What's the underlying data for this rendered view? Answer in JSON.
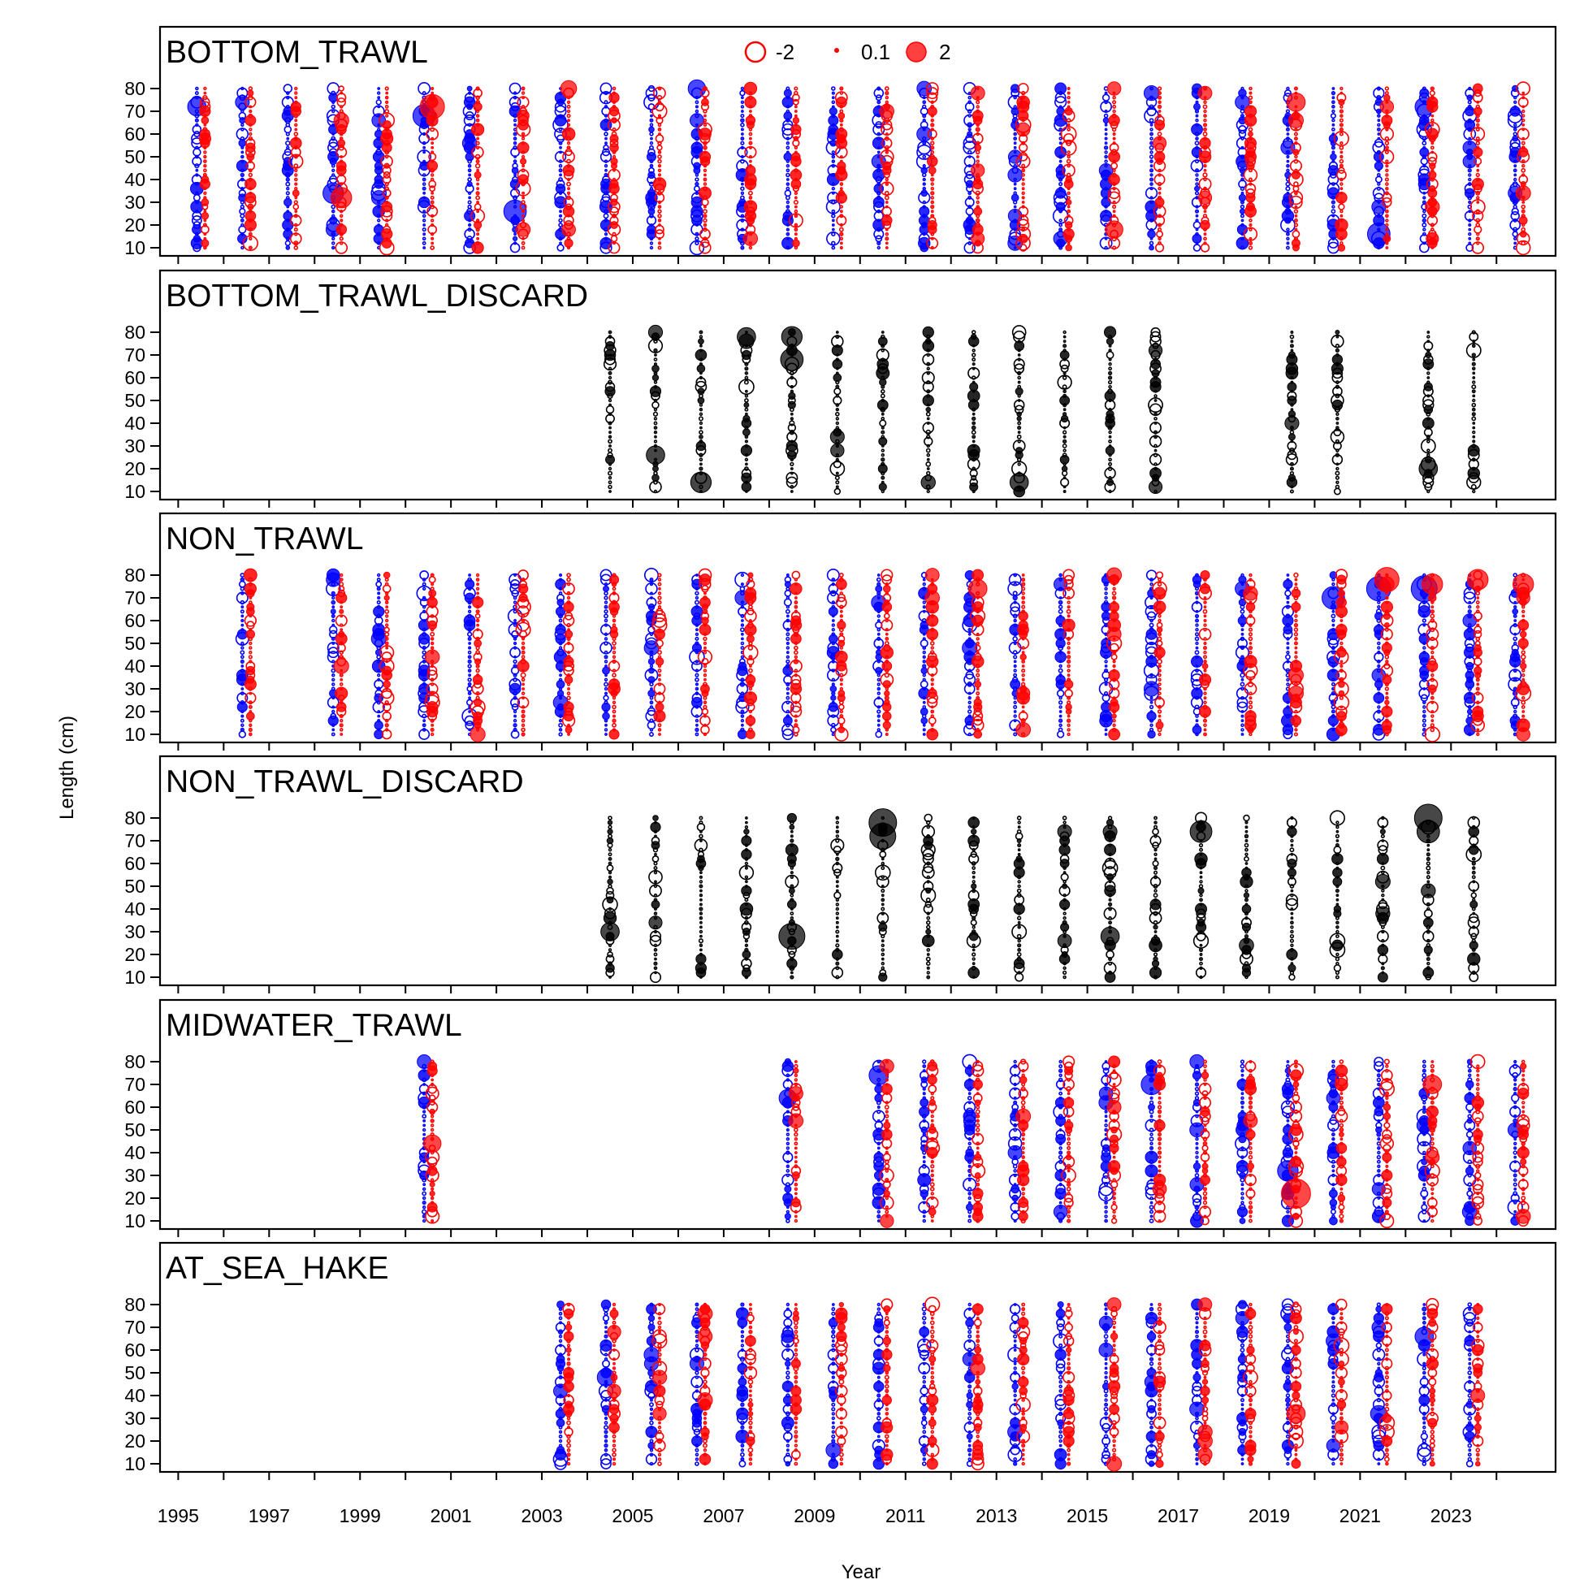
{
  "chart_data": {
    "type": "scatter",
    "subtype": "bubble (Pearson residuals by year and length bin)",
    "xlabel": "Year",
    "ylabel": "Length (cm)",
    "ylim": [
      10,
      80
    ],
    "y_ticks": [
      10,
      20,
      30,
      40,
      50,
      60,
      70,
      80
    ],
    "x_ticks_labeled": [
      "1995",
      "1997",
      "1999",
      "2001",
      "2003",
      "2005",
      "2007",
      "2009",
      "2011",
      "2013",
      "2015",
      "2017",
      "2019",
      "2021",
      "2023"
    ],
    "xlim": [
      1994.6,
      2025.3
    ],
    "colors": {
      "female": "#0000FF",
      "male": "#FF0000",
      "unsexed": "#000000"
    },
    "legend": {
      "position": "top-center",
      "entries": [
        {
          "label": "-2",
          "value": -2,
          "style": "open"
        },
        {
          "label": "0.1",
          "value": 0.1,
          "style": "filled"
        },
        {
          "label": "2",
          "value": 2,
          "style": "filled"
        }
      ]
    },
    "panels": [
      {
        "title": "BOTTOM_TRAWL",
        "sexed": true,
        "years": [
          1995,
          1996,
          1997,
          1998,
          1999,
          2000,
          2001,
          2002,
          2003,
          2004,
          2005,
          2006,
          2007,
          2008,
          2009,
          2010,
          2011,
          2012,
          2013,
          2014,
          2015,
          2016,
          2017,
          2018,
          2019,
          2020,
          2021,
          2022,
          2023,
          2024
        ],
        "notable": [
          {
            "year": 1995,
            "sex": "F",
            "length": 72,
            "residual": 2.0
          },
          {
            "year": 1998,
            "sex": "F",
            "length": 34,
            "residual": 2.5
          },
          {
            "year": 1998,
            "sex": "M",
            "length": 32,
            "residual": 2.5
          },
          {
            "year": 2000,
            "sex": "F",
            "length": 68,
            "residual": 3.0
          },
          {
            "year": 2000,
            "sex": "M",
            "length": 72,
            "residual": 3.5
          },
          {
            "year": 2002,
            "sex": "F",
            "length": 26,
            "residual": 3.0
          },
          {
            "year": 2003,
            "sex": "M",
            "length": 80,
            "residual": 1.5
          },
          {
            "year": 2006,
            "sex": "F",
            "length": 80,
            "residual": 1.8
          },
          {
            "year": 2019,
            "sex": "M",
            "length": 74,
            "residual": 2.0
          },
          {
            "year": 2021,
            "sex": "F",
            "length": 16,
            "residual": 3.0
          },
          {
            "year": 2015,
            "sex": "M",
            "length": 18,
            "residual": 1.8
          },
          {
            "year": 2022,
            "sex": "F",
            "length": 72,
            "residual": 2.0
          }
        ]
      },
      {
        "title": "BOTTOM_TRAWL_DISCARD",
        "sexed": false,
        "years": [
          2004,
          2005,
          2006,
          2007,
          2008,
          2009,
          2010,
          2011,
          2012,
          2013,
          2014,
          2015,
          2016,
          2019,
          2020,
          2022,
          2023
        ],
        "notable": [
          {
            "year": 2006,
            "sex": "U",
            "length": 14,
            "residual": 2.5
          },
          {
            "year": 2007,
            "sex": "U",
            "length": 78,
            "residual": 2.0
          },
          {
            "year": 2008,
            "sex": "U",
            "length": 78,
            "residual": 2.5
          },
          {
            "year": 2008,
            "sex": "U",
            "length": 68,
            "residual": 3.0
          },
          {
            "year": 2005,
            "sex": "U",
            "length": 26,
            "residual": 2.0
          },
          {
            "year": 2013,
            "sex": "U",
            "length": 14,
            "residual": 2.0
          },
          {
            "year": 2022,
            "sex": "U",
            "length": 20,
            "residual": 2.0
          }
        ]
      },
      {
        "title": "NON_TRAWL",
        "sexed": true,
        "years": [
          1996,
          1998,
          1999,
          2000,
          2001,
          2002,
          2003,
          2004,
          2005,
          2006,
          2007,
          2008,
          2009,
          2010,
          2011,
          2012,
          2013,
          2014,
          2015,
          2016,
          2017,
          2018,
          2019,
          2020,
          2021,
          2022,
          2023,
          2024
        ],
        "notable": [
          {
            "year": 2020,
            "sex": "M",
            "length": 79,
            "residual": 3.0
          },
          {
            "year": 2020,
            "sex": "F",
            "length": 70,
            "residual": 3.0
          },
          {
            "year": 2021,
            "sex": "M",
            "length": 78,
            "residual": 3.5
          },
          {
            "year": 2021,
            "sex": "F",
            "length": 74,
            "residual": 3.5
          },
          {
            "year": 2022,
            "sex": "F",
            "length": 74,
            "residual": 4.0
          },
          {
            "year": 2022,
            "sex": "M",
            "length": 76,
            "residual": 2.5
          },
          {
            "year": 2023,
            "sex": "M",
            "length": 78,
            "residual": 2.5
          },
          {
            "year": 2024,
            "sex": "M",
            "length": 76,
            "residual": 2.5
          },
          {
            "year": 2012,
            "sex": "M",
            "length": 74,
            "residual": 2.0
          }
        ]
      },
      {
        "title": "NON_TRAWL_DISCARD",
        "sexed": false,
        "years": [
          2004,
          2005,
          2006,
          2007,
          2008,
          2009,
          2010,
          2011,
          2012,
          2013,
          2014,
          2015,
          2016,
          2017,
          2018,
          2019,
          2020,
          2021,
          2022,
          2023
        ],
        "notable": [
          {
            "year": 2010,
            "sex": "U",
            "length": 78,
            "residual": 4.5
          },
          {
            "year": 2010,
            "sex": "U",
            "length": 72,
            "residual": 4.0
          },
          {
            "year": 2022,
            "sex": "U",
            "length": 80,
            "residual": 4.5
          },
          {
            "year": 2022,
            "sex": "U",
            "length": 74,
            "residual": 3.0
          },
          {
            "year": 2008,
            "sex": "U",
            "length": 28,
            "residual": 4.0
          },
          {
            "year": 2017,
            "sex": "U",
            "length": 74,
            "residual": 2.8
          },
          {
            "year": 2004,
            "sex": "U",
            "length": 30,
            "residual": 2.0
          },
          {
            "year": 2015,
            "sex": "U",
            "length": 28,
            "residual": 2.0
          }
        ]
      },
      {
        "title": "MIDWATER_TRAWL",
        "sexed": true,
        "years": [
          2000,
          2008,
          2010,
          2011,
          2012,
          2013,
          2014,
          2015,
          2016,
          2017,
          2018,
          2019,
          2020,
          2021,
          2022,
          2023,
          2024
        ],
        "notable": [
          {
            "year": 2019,
            "sex": "M",
            "length": 22,
            "residual": 5.0
          },
          {
            "year": 2019,
            "sex": "F",
            "length": 32,
            "residual": 2.5
          },
          {
            "year": 2016,
            "sex": "F",
            "length": 70,
            "residual": 2.5
          },
          {
            "year": 2010,
            "sex": "F",
            "length": 74,
            "residual": 2.2
          },
          {
            "year": 2008,
            "sex": "F",
            "length": 64,
            "residual": 1.8
          },
          {
            "year": 2022,
            "sex": "M",
            "length": 70,
            "residual": 2.0
          },
          {
            "year": 2000,
            "sex": "M",
            "length": 44,
            "residual": 1.8
          }
        ]
      },
      {
        "title": "AT_SEA_HAKE",
        "sexed": true,
        "years": [
          2003,
          2004,
          2005,
          2006,
          2007,
          2008,
          2009,
          2010,
          2011,
          2012,
          2013,
          2014,
          2015,
          2016,
          2017,
          2018,
          2019,
          2020,
          2021,
          2022,
          2023
        ],
        "notable": [
          {
            "year": 2019,
            "sex": "M",
            "length": 32,
            "residual": 2.0
          },
          {
            "year": 2004,
            "sex": "F",
            "length": 48,
            "residual": 1.8
          },
          {
            "year": 2022,
            "sex": "F",
            "length": 66,
            "residual": 2.0
          },
          {
            "year": 2021,
            "sex": "F",
            "length": 32,
            "residual": 1.6
          }
        ]
      }
    ]
  }
}
